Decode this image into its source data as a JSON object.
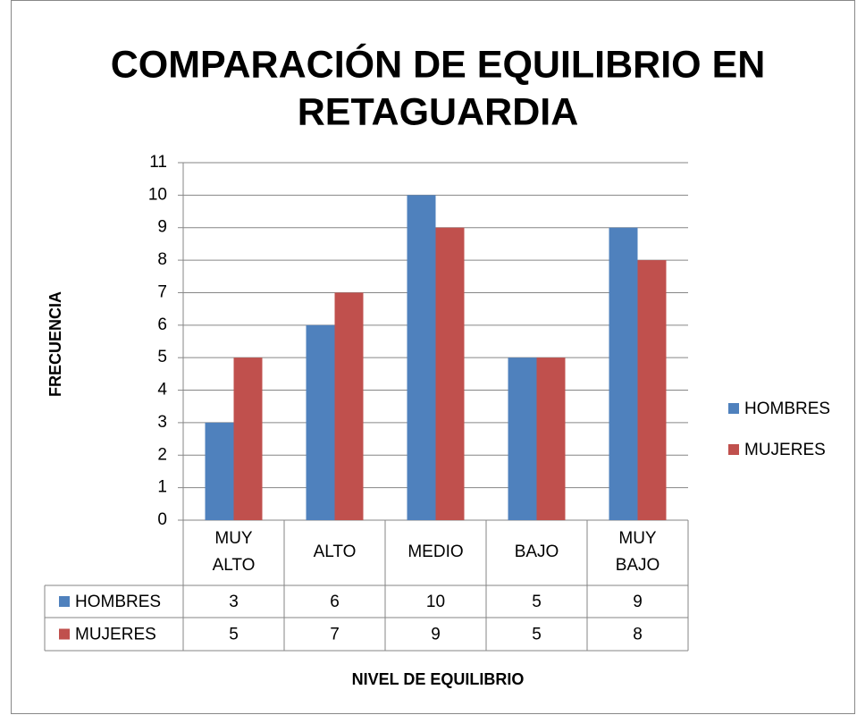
{
  "chart_data": {
    "type": "bar",
    "title": "COMPARACIÓN  DE EQUILIBRIO EN RETAGUARDIA",
    "x_label": "NIVEL DE EQUILIBRIO",
    "y_label": "FRECUENCIA",
    "categories": [
      "MUY ALTO",
      "ALTO",
      "MEDIO",
      "BAJO",
      "MUY BAJO"
    ],
    "series": [
      {
        "name": "HOMBRES",
        "color": "#4f81bd",
        "values": [
          3,
          6,
          10,
          5,
          9
        ]
      },
      {
        "name": "MUJERES",
        "color": "#c0504d",
        "values": [
          5,
          7,
          9,
          5,
          8
        ]
      }
    ],
    "ylim": [
      0,
      11
    ],
    "yticks": [
      0,
      1,
      2,
      3,
      4,
      5,
      6,
      7,
      8,
      9,
      10,
      11
    ],
    "grid": true,
    "legend": "right",
    "data_table": true
  }
}
